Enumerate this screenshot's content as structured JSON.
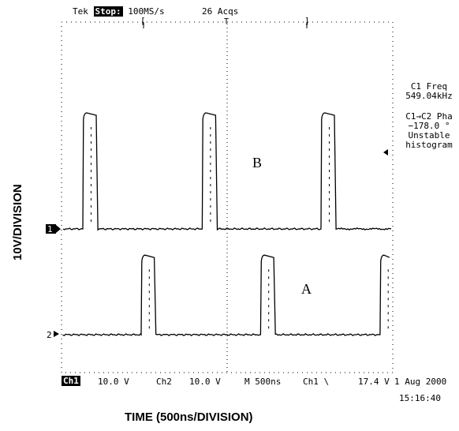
{
  "header": {
    "brand": "Tek",
    "state": "Stop:",
    "sample_rate": "100MS/s",
    "acqs": "26 Acqs",
    "trigger_bracket_left": "[",
    "trigger_marker": "T",
    "trigger_bracket_right": "]"
  },
  "measurements": {
    "freq_label": "C1 Freq",
    "freq_value": "549.04kHz",
    "phase_label": "C1→C2 Pha",
    "phase_value": "−178.0 °",
    "phase_status1": "Unstable",
    "phase_status2": "histogram"
  },
  "footer": {
    "ch1_label": "Ch1",
    "ch1_scale": "10.0 V",
    "ch2_label": "Ch2",
    "ch2_scale": "10.0 V",
    "timebase": "M 500ns",
    "trigger_src": "Ch1 \\",
    "trigger_level": "17.4 V",
    "date": "1 Aug 2000",
    "time": "15:16:40"
  },
  "chart_data": {
    "type": "line",
    "title": "",
    "xlabel": "TIME (500ns/DIVISION)",
    "ylabel": "10V/DIVISION",
    "x_unit": "ns",
    "xlim": [
      0,
      5000
    ],
    "x_divisions": 10,
    "y_unit": "V",
    "y_per_division": 10,
    "grid": "center-graticule",
    "markers": {
      "ch1": "1",
      "ch2": "2"
    },
    "series": [
      {
        "name": "B",
        "channel": 1,
        "baseline_v": 0,
        "pulse_high_v": 35,
        "pulse_width_ns": 230,
        "pulse_starts_ns": [
          300,
          2120,
          3930
        ]
      },
      {
        "name": "A",
        "channel": 2,
        "baseline_v": 0,
        "pulse_high_v": 24,
        "pulse_width_ns": 225,
        "pulse_starts_ns": [
          1190,
          3010,
          4830
        ]
      }
    ]
  }
}
